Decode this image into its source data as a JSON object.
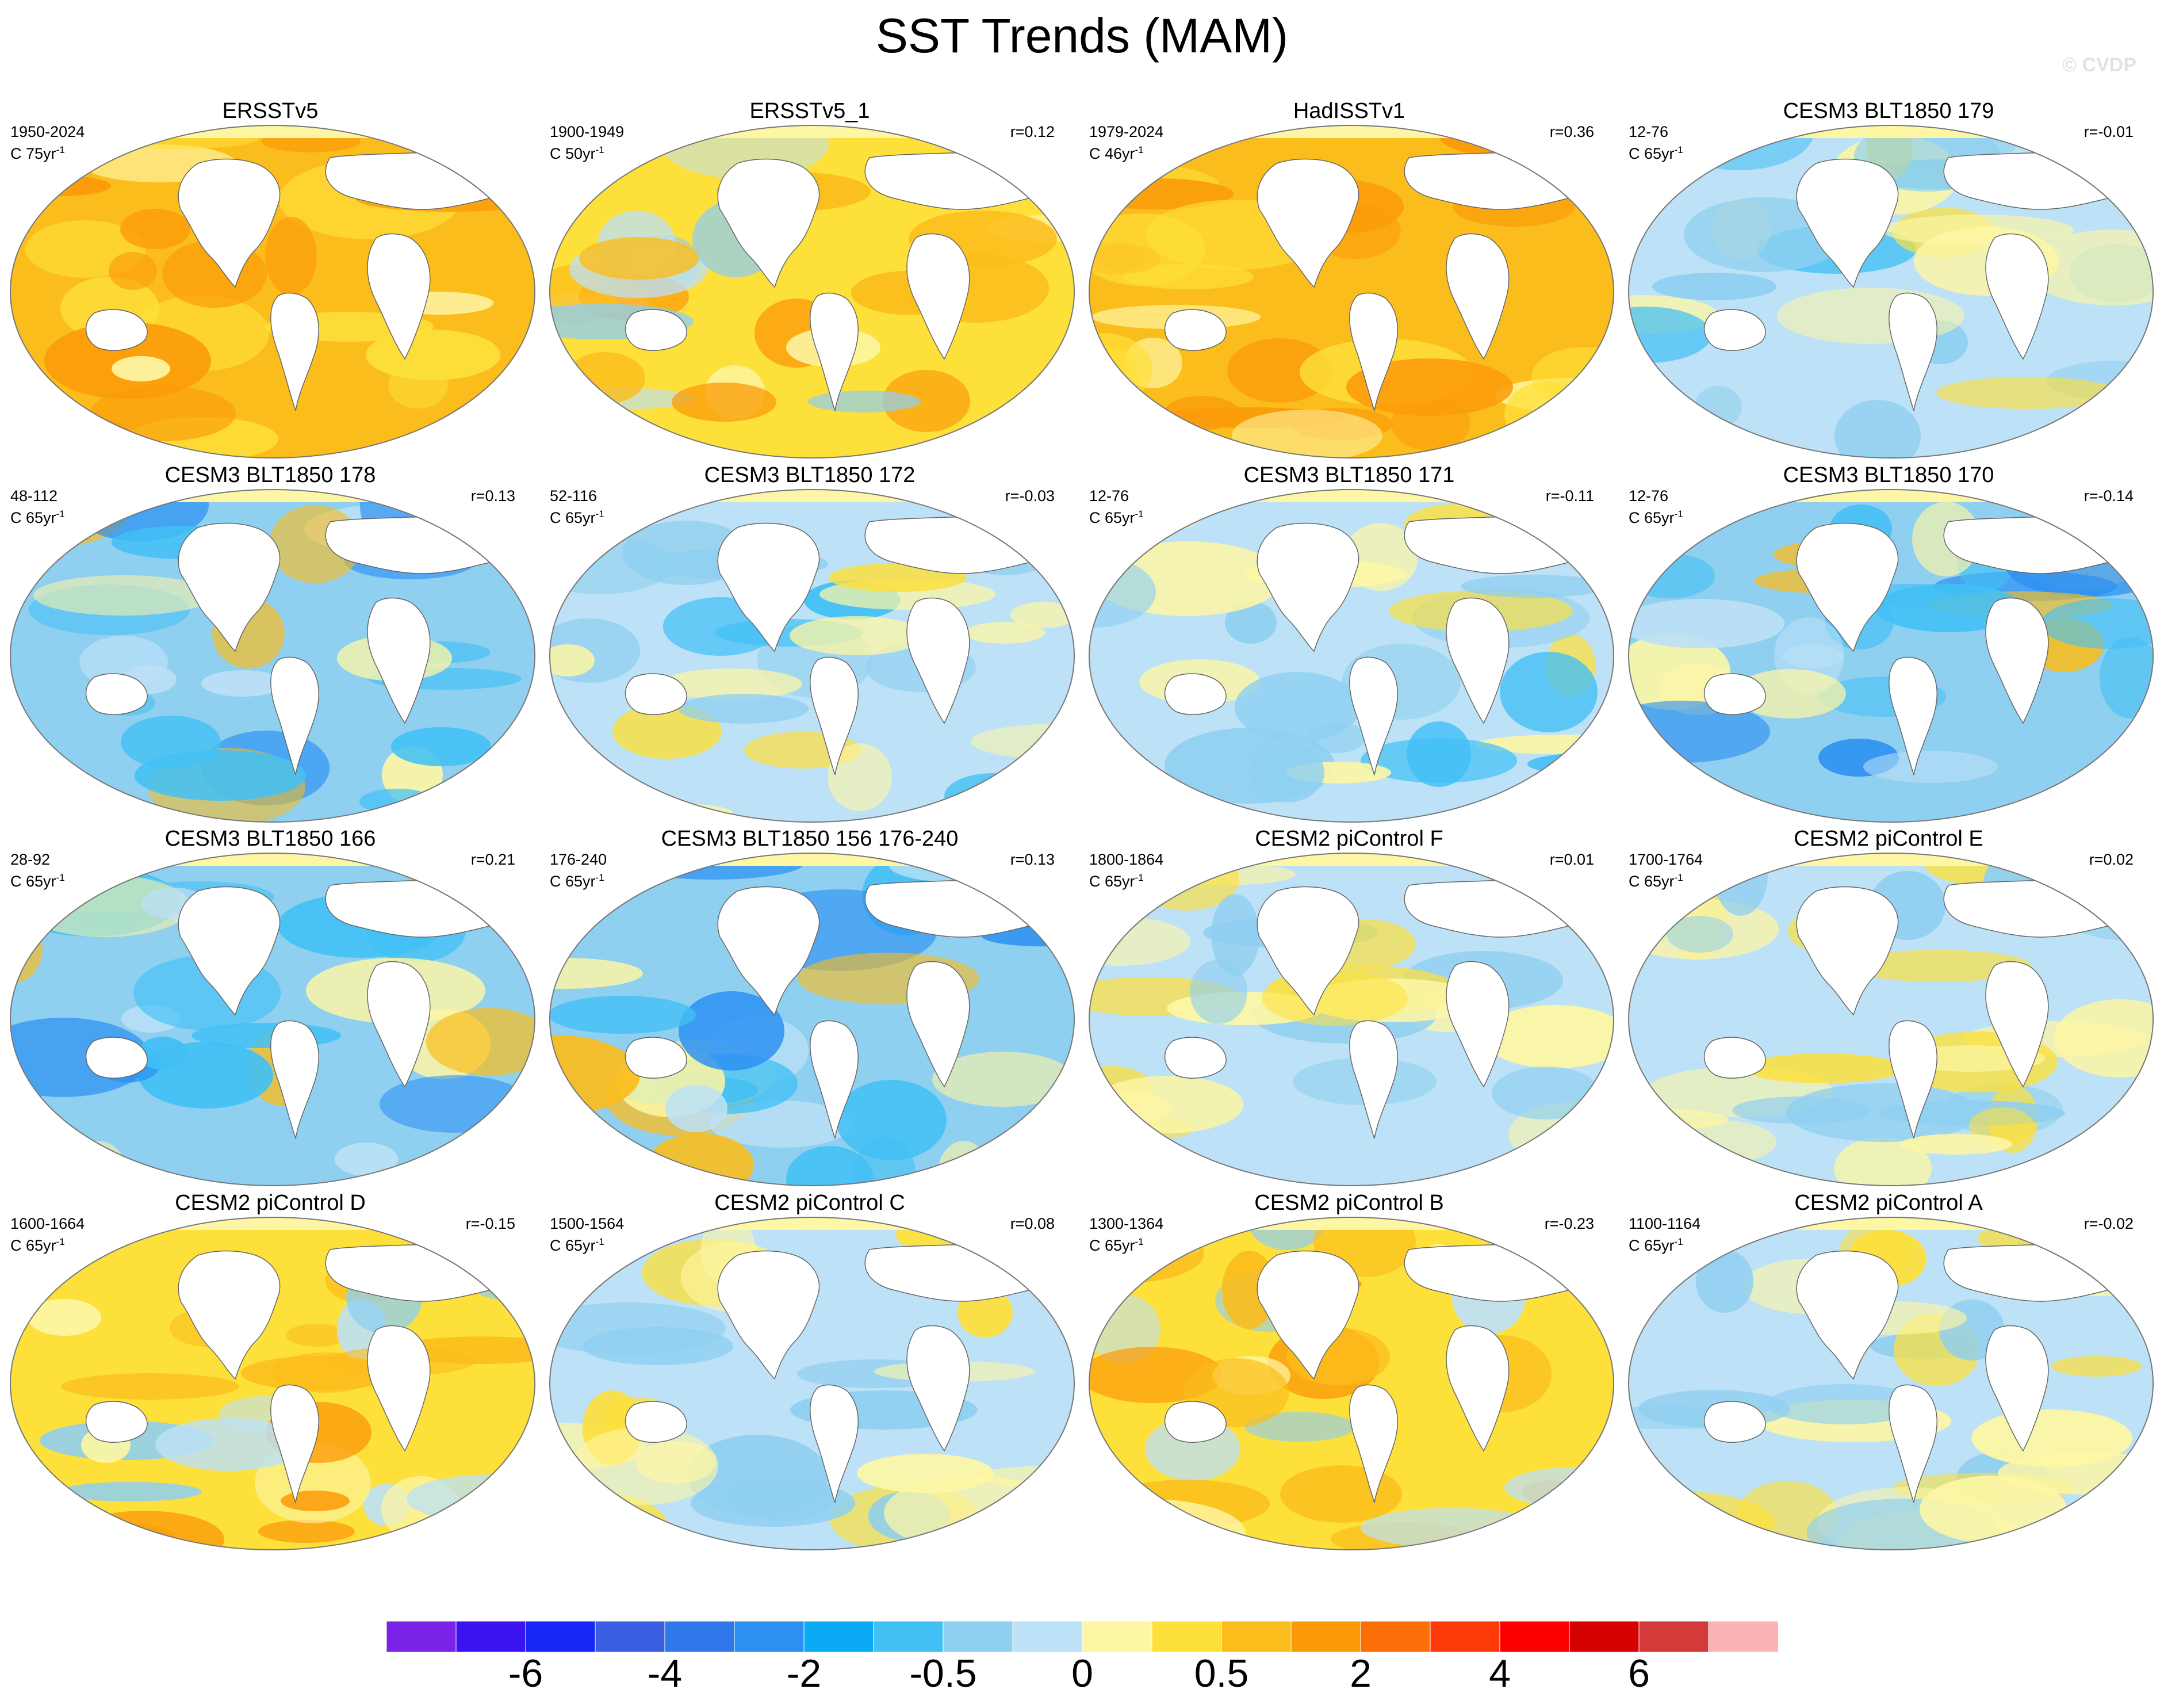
{
  "title": "SST Trends (MAM)",
  "watermark": "© CVDP",
  "panels": [
    {
      "title": "ERSSTv5",
      "years": "1950-2024",
      "unit": "C 75yr",
      "unit_exp": "-1",
      "r": "",
      "fill": "warm"
    },
    {
      "title": "ERSSTv5_1",
      "years": "1900-1949",
      "unit": "C 50yr",
      "unit_exp": "-1",
      "r": "r=0.12",
      "fill": "warm-mix"
    },
    {
      "title": "HadISSTv1",
      "years": "1979-2024",
      "unit": "C 46yr",
      "unit_exp": "-1",
      "r": "r=0.36",
      "fill": "warm"
    },
    {
      "title": "CESM3 BLT1850 179",
      "years": "12-76",
      "unit": "C 65yr",
      "unit_exp": "-1",
      "r": "r=-0.01",
      "fill": "cool-mix"
    },
    {
      "title": "CESM3 BLT1850 178",
      "years": "48-112",
      "unit": "C 65yr",
      "unit_exp": "-1",
      "r": "r=0.13",
      "fill": "cool"
    },
    {
      "title": "CESM3 BLT1850 172",
      "years": "52-116",
      "unit": "C 65yr",
      "unit_exp": "-1",
      "r": "r=-0.03",
      "fill": "cool-mix"
    },
    {
      "title": "CESM3 BLT1850 171",
      "years": "12-76",
      "unit": "C 65yr",
      "unit_exp": "-1",
      "r": "r=-0.11",
      "fill": "cool-mix"
    },
    {
      "title": "CESM3 BLT1850 170",
      "years": "12-76",
      "unit": "C 65yr",
      "unit_exp": "-1",
      "r": "r=-0.14",
      "fill": "cool"
    },
    {
      "title": "CESM3 BLT1850 166",
      "years": "28-92",
      "unit": "C 65yr",
      "unit_exp": "-1",
      "r": "r=0.21",
      "fill": "cool"
    },
    {
      "title": "CESM3 BLT1850 156 176-240",
      "years": "176-240",
      "unit": "C 65yr",
      "unit_exp": "-1",
      "r": "r=0.13",
      "fill": "cool"
    },
    {
      "title": "CESM2 piControl F",
      "years": "1800-1864",
      "unit": "C 65yr",
      "unit_exp": "-1",
      "r": "r=0.01",
      "fill": "neutral"
    },
    {
      "title": "CESM2 piControl E",
      "years": "1700-1764",
      "unit": "C 65yr",
      "unit_exp": "-1",
      "r": "r=0.02",
      "fill": "neutral"
    },
    {
      "title": "CESM2 piControl D",
      "years": "1600-1664",
      "unit": "C 65yr",
      "unit_exp": "-1",
      "r": "r=-0.15",
      "fill": "warm-mix"
    },
    {
      "title": "CESM2 piControl C",
      "years": "1500-1564",
      "unit": "C 65yr",
      "unit_exp": "-1",
      "r": "r=0.08",
      "fill": "neutral"
    },
    {
      "title": "CESM2 piControl B",
      "years": "1300-1364",
      "unit": "C 65yr",
      "unit_exp": "-1",
      "r": "r=-0.23",
      "fill": "warm-mix"
    },
    {
      "title": "CESM2 piControl A",
      "years": "1100-1164",
      "unit": "C 65yr",
      "unit_exp": "-1",
      "r": "r=-0.02",
      "fill": "neutral"
    }
  ],
  "colorbar": {
    "colors": [
      "#7b22e8",
      "#3b13f0",
      "#1526f5",
      "#3a5ee0",
      "#2f78ea",
      "#2b90f2",
      "#0aaaf5",
      "#42c0f5",
      "#8fcff0",
      "#bde1f6",
      "#fdf6a5",
      "#fde03a",
      "#fbbd1c",
      "#fb9b0a",
      "#fb6e08",
      "#fb3a08",
      "#fb0000",
      "#d50000",
      "#d43a3a",
      "#fbb4b4"
    ],
    "labels": [
      "-6",
      "-4",
      "-2",
      "-0.5",
      "0",
      "0.5",
      "2",
      "4",
      "6"
    ]
  }
}
